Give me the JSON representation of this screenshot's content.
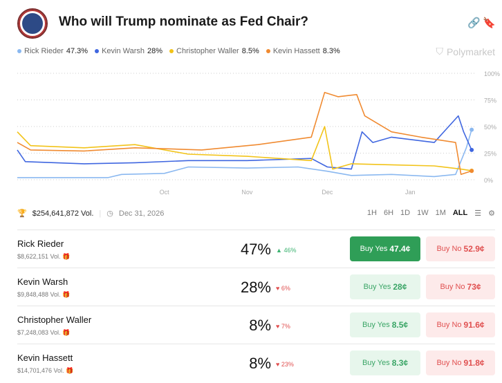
{
  "header": {
    "title": "Who will Trump nominate as Fed Chair?",
    "brand": "Polymarket",
    "link_icon": "link-icon",
    "bookmark_icon": "bookmark-icon"
  },
  "legend": [
    {
      "name": "Rick Rieder",
      "value": "47.3%",
      "color": "#8ab8f0"
    },
    {
      "name": "Kevin Warsh",
      "value": "28%",
      "color": "#3f66e0"
    },
    {
      "name": "Christopher Waller",
      "value": "8.5%",
      "color": "#f2c318"
    },
    {
      "name": "Kevin Hassett",
      "value": "8.3%",
      "color": "#f08a30"
    }
  ],
  "meta": {
    "volume": "$254,641,872 Vol.",
    "end_date": "Dec 31, 2026"
  },
  "ranges": [
    "1H",
    "6H",
    "1D",
    "1W",
    "1M",
    "ALL"
  ],
  "active_range": "ALL",
  "outcomes": [
    {
      "name": "Rick Rieder",
      "volume": "$8,622,151 Vol.",
      "pct": "47%",
      "change": "46%",
      "dir": "up",
      "yes_label": "Buy Yes",
      "yes": "47.4¢",
      "no_label": "Buy No",
      "no": "52.9¢"
    },
    {
      "name": "Kevin Warsh",
      "volume": "$9,848,488 Vol.",
      "pct": "28%",
      "change": "6%",
      "dir": "down",
      "yes_label": "Buy Yes",
      "yes": "28¢",
      "no_label": "Buy No",
      "no": "73¢"
    },
    {
      "name": "Christopher Waller",
      "volume": "$7,248,083 Vol.",
      "pct": "8%",
      "change": "7%",
      "dir": "down",
      "yes_label": "Buy Yes",
      "yes": "8.5¢",
      "no_label": "Buy No",
      "no": "91.6¢"
    },
    {
      "name": "Kevin Hassett",
      "volume": "$14,701,476 Vol.",
      "pct": "8%",
      "change": "23%",
      "dir": "down",
      "yes_label": "Buy Yes",
      "yes": "8.3¢",
      "no_label": "Buy No",
      "no": "91.8¢"
    }
  ],
  "chart_data": {
    "type": "line",
    "x_ticks": [
      "Oct",
      "Nov",
      "Dec",
      "Jan"
    ],
    "y_ticks": [
      "100%",
      "75%",
      "50%",
      "25%",
      "0%"
    ],
    "ylim": [
      0,
      100
    ],
    "grid": true,
    "series": [
      {
        "name": "Rick Rieder",
        "color": "#8ab8f0",
        "points": [
          [
            "2025-08-07",
            2
          ],
          [
            "2025-09-10",
            2
          ],
          [
            "2025-09-15",
            5
          ],
          [
            "2025-10-01",
            6
          ],
          [
            "2025-10-10",
            12
          ],
          [
            "2025-11-01",
            11
          ],
          [
            "2025-11-20",
            12
          ],
          [
            "2025-12-01",
            8
          ],
          [
            "2025-12-10",
            4
          ],
          [
            "2025-12-25",
            5
          ],
          [
            "2026-01-10",
            3
          ],
          [
            "2026-01-18",
            5
          ],
          [
            "2026-01-22",
            30
          ],
          [
            "2026-01-24",
            47
          ]
        ]
      },
      {
        "name": "Kevin Warsh",
        "color": "#3f66e0",
        "points": [
          [
            "2025-08-07",
            28
          ],
          [
            "2025-08-10",
            17
          ],
          [
            "2025-09-01",
            15
          ],
          [
            "2025-09-20",
            16
          ],
          [
            "2025-10-10",
            18
          ],
          [
            "2025-11-01",
            18
          ],
          [
            "2025-11-25",
            20
          ],
          [
            "2025-12-01",
            12
          ],
          [
            "2025-12-10",
            10
          ],
          [
            "2025-12-14",
            45
          ],
          [
            "2025-12-18",
            35
          ],
          [
            "2025-12-25",
            40
          ],
          [
            "2026-01-10",
            35
          ],
          [
            "2026-01-19",
            60
          ],
          [
            "2026-01-21",
            45
          ],
          [
            "2026-01-24",
            28
          ]
        ]
      },
      {
        "name": "Christopher Waller",
        "color": "#f2c318",
        "points": [
          [
            "2025-08-07",
            45
          ],
          [
            "2025-08-12",
            32
          ],
          [
            "2025-09-01",
            30
          ],
          [
            "2025-09-20",
            33
          ],
          [
            "2025-10-10",
            24
          ],
          [
            "2025-11-01",
            22
          ],
          [
            "2025-11-25",
            18
          ],
          [
            "2025-11-30",
            50
          ],
          [
            "2025-12-03",
            10
          ],
          [
            "2025-12-10",
            15
          ],
          [
            "2025-12-25",
            14
          ],
          [
            "2026-01-10",
            13
          ],
          [
            "2026-01-20",
            10
          ],
          [
            "2026-01-24",
            8.5
          ]
        ]
      },
      {
        "name": "Kevin Hassett",
        "color": "#f08a30",
        "points": [
          [
            "2025-08-07",
            35
          ],
          [
            "2025-08-12",
            28
          ],
          [
            "2025-09-01",
            27
          ],
          [
            "2025-09-20",
            30
          ],
          [
            "2025-10-15",
            28
          ],
          [
            "2025-11-05",
            33
          ],
          [
            "2025-11-25",
            40
          ],
          [
            "2025-11-30",
            82
          ],
          [
            "2025-12-05",
            78
          ],
          [
            "2025-12-12",
            80
          ],
          [
            "2025-12-15",
            60
          ],
          [
            "2025-12-25",
            45
          ],
          [
            "2026-01-05",
            40
          ],
          [
            "2026-01-18",
            35
          ],
          [
            "2026-01-20",
            5
          ],
          [
            "2026-01-24",
            8.3
          ]
        ]
      }
    ]
  }
}
